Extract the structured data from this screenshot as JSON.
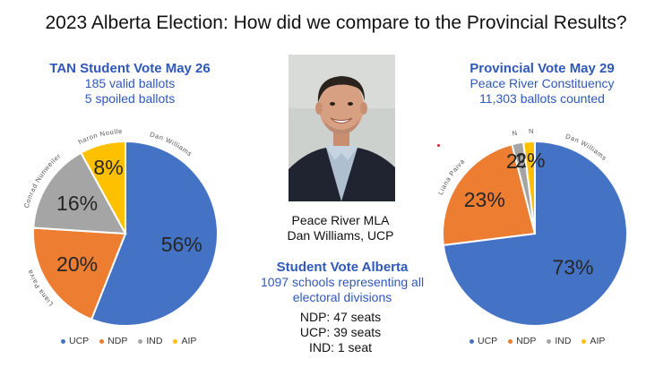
{
  "title": "2023 Alberta Election:  How did we compare to the Provincial Results?",
  "left_header": {
    "line1": "TAN Student Vote May 26",
    "line2": "185 valid ballots",
    "line3": "5 spoiled ballots"
  },
  "right_header": {
    "line1": "Provincial Vote May 29",
    "line2": "Peace River Constituency",
    "line3": "11,303 ballots counted"
  },
  "center": {
    "mla_line1": "Peace River MLA",
    "mla_line2": "Dan Williams, UCP",
    "sva_title": "Student Vote Alberta",
    "sva_line1": "1097 schools representing all",
    "sva_line2": "electoral divisions",
    "seats": [
      "NDP: 47 seats",
      "UCP: 39 seats",
      "IND: 1 seat"
    ]
  },
  "colors": {
    "UCP": "#4472c4",
    "NDP": "#ed7d31",
    "IND": "#a5a5a5",
    "AIP": "#ffc000",
    "accent": "#2f58b8"
  },
  "chart_data": [
    {
      "type": "pie",
      "title": "TAN Student Vote May 26",
      "categories": [
        "UCP",
        "NDP",
        "IND",
        "AIP"
      ],
      "values": [
        56,
        20,
        16,
        8
      ],
      "value_labels": [
        "56%",
        "20%",
        "16%",
        "8%"
      ],
      "slice_names": [
        "Dan Williams",
        "Liana Paiva",
        "Conrad Nunweiler",
        "Sharon Noullett"
      ],
      "legend": {
        "position": "bottom",
        "entries": [
          "UCP",
          "NDP",
          "IND",
          "AIP"
        ]
      }
    },
    {
      "type": "pie",
      "title": "Provincial Vote May 29",
      "categories": [
        "UCP",
        "NDP",
        "IND",
        "AIP"
      ],
      "values": [
        73,
        23,
        2,
        2
      ],
      "value_labels": [
        "73%",
        "23%",
        "2%",
        "2%"
      ],
      "slice_names": [
        "Dan Williams",
        "Liana Paiva",
        "Conrad Nunweiler",
        "Sharon Noullett"
      ],
      "legend": {
        "position": "bottom",
        "entries": [
          "UCP",
          "NDP",
          "IND",
          "AIP"
        ]
      }
    }
  ]
}
